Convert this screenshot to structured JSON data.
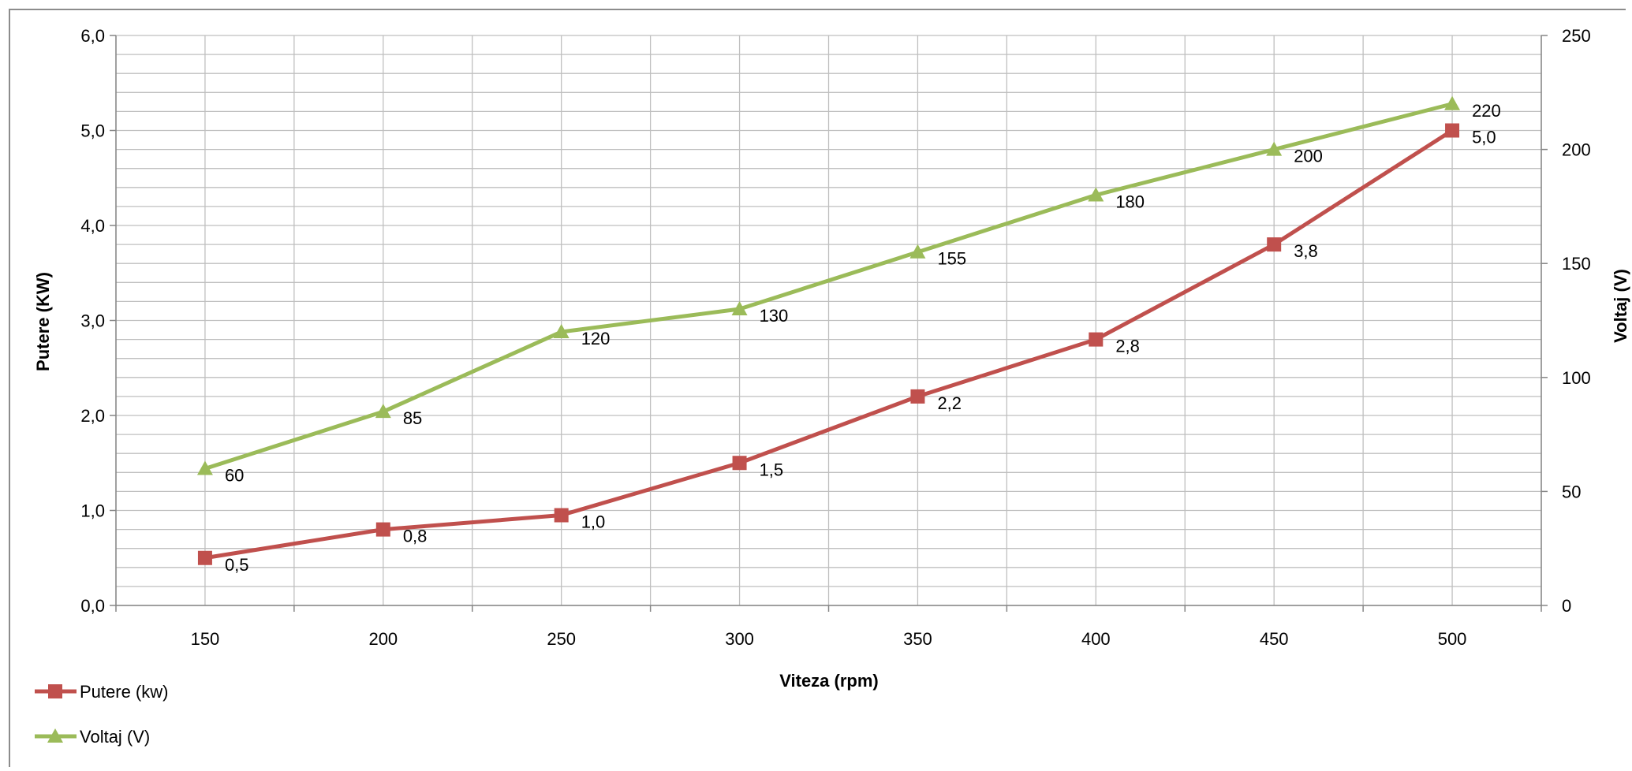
{
  "chart_data": {
    "type": "line",
    "categories": [
      "150",
      "200",
      "250",
      "300",
      "350",
      "400",
      "450",
      "500"
    ],
    "xlabel": "Viteza  (rpm)",
    "ylabel": "Putere (KW)",
    "y2label": "Voltaj (V)",
    "ylim": [
      0,
      6
    ],
    "y_ticks": [
      "0,0",
      "1,0",
      "2,0",
      "3,0",
      "4,0",
      "5,0",
      "6,0"
    ],
    "y2lim": [
      0,
      250
    ],
    "y2_ticks": [
      "0",
      "50",
      "100",
      "150",
      "200",
      "250"
    ],
    "grid": true,
    "legend_position": "bottom-left",
    "series": [
      {
        "name": "Putere (kw)",
        "axis": "left",
        "color": "#c0504d",
        "marker": "square",
        "values": [
          0.5,
          0.8,
          0.95,
          1.5,
          2.2,
          2.8,
          3.8,
          5.0
        ],
        "labels": [
          "0,5",
          "0,8",
          "1,0",
          "1,5",
          "2,2",
          "2,8",
          "3,8",
          "5,0"
        ]
      },
      {
        "name": "Voltaj (V)",
        "axis": "right",
        "color": "#9bbb59",
        "marker": "triangle",
        "values": [
          60,
          85,
          120,
          130,
          155,
          180,
          200,
          220
        ],
        "labels": [
          "60",
          "85",
          "120",
          "130",
          "155",
          "180",
          "200",
          "220"
        ]
      }
    ]
  }
}
